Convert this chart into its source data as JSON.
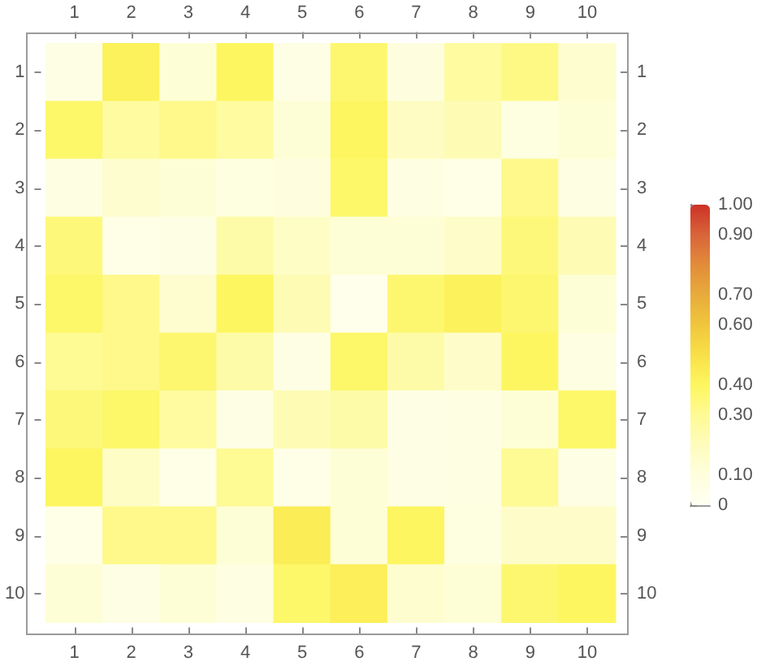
{
  "chart_data": {
    "type": "heatmap",
    "categories": [
      "1",
      "2",
      "3",
      "4",
      "5",
      "6",
      "7",
      "8",
      "9",
      "10"
    ],
    "y_categories": [
      "1",
      "2",
      "3",
      "4",
      "5",
      "6",
      "7",
      "8",
      "9",
      "10"
    ],
    "y2_categories": [
      "1",
      "2",
      "3",
      "4",
      "5",
      "6",
      "7",
      "8",
      "9",
      "10"
    ],
    "cells": [
      [
        0.06,
        0.42,
        0.12,
        0.4,
        0.06,
        0.37,
        0.09,
        0.27,
        0.33,
        0.14
      ],
      [
        0.38,
        0.27,
        0.32,
        0.27,
        0.12,
        0.4,
        0.18,
        0.22,
        0.08,
        0.12
      ],
      [
        0.07,
        0.14,
        0.12,
        0.08,
        0.09,
        0.38,
        0.07,
        0.05,
        0.32,
        0.07
      ],
      [
        0.35,
        0.05,
        0.06,
        0.25,
        0.17,
        0.12,
        0.12,
        0.16,
        0.35,
        0.22
      ],
      [
        0.38,
        0.32,
        0.14,
        0.4,
        0.22,
        0.03,
        0.37,
        0.42,
        0.37,
        0.12
      ],
      [
        0.3,
        0.32,
        0.37,
        0.25,
        0.06,
        0.38,
        0.25,
        0.16,
        0.4,
        0.07
      ],
      [
        0.35,
        0.38,
        0.27,
        0.06,
        0.22,
        0.25,
        0.06,
        0.07,
        0.12,
        0.38
      ],
      [
        0.4,
        0.17,
        0.05,
        0.3,
        0.05,
        0.12,
        0.06,
        0.07,
        0.3,
        0.06
      ],
      [
        0.05,
        0.32,
        0.32,
        0.12,
        0.44,
        0.12,
        0.4,
        0.08,
        0.16,
        0.16
      ],
      [
        0.12,
        0.06,
        0.12,
        0.07,
        0.38,
        0.43,
        0.14,
        0.12,
        0.37,
        0.4
      ]
    ],
    "clim": [
      0,
      1
    ],
    "cticks": [
      0,
      {
        "value": 0.1,
        "label": "0.10"
      },
      {
        "value": 0.3,
        "label": "0.30"
      },
      {
        "value": 0.4,
        "label": "0.40"
      },
      {
        "value": 0.6,
        "label": "0.60"
      },
      {
        "value": 0.7,
        "label": "0.70"
      },
      {
        "value": 0.9,
        "label": "0.90"
      },
      {
        "value": 1,
        "label": "1.00"
      }
    ]
  }
}
